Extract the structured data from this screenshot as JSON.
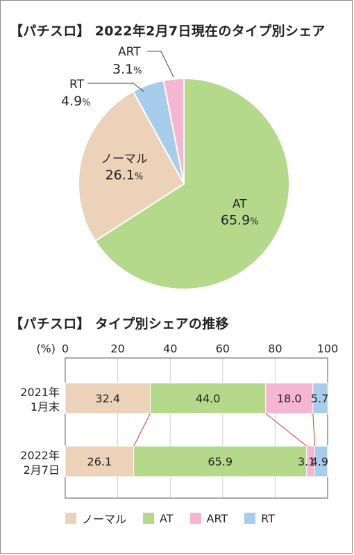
{
  "chart_data": [
    {
      "type": "pie",
      "title": "【パチスロ】 2022年2月7日現在のタイプ別シェア",
      "slices": [
        {
          "name": "AT",
          "value": 65.9,
          "label": "65.9",
          "unit": "%",
          "color": "#b5d98b"
        },
        {
          "name": "ノーマル",
          "value": 26.1,
          "label": "26.1",
          "unit": "%",
          "color": "#ebd2b8"
        },
        {
          "name": "RT",
          "value": 4.9,
          "label": "4.9",
          "unit": "%",
          "color": "#a8cceb"
        },
        {
          "name": "ART",
          "value": 3.1,
          "label": "3.1",
          "unit": "%",
          "color": "#f4b6d1"
        }
      ]
    },
    {
      "type": "bar",
      "orientation": "horizontal-stacked",
      "title": "【パチスロ】 タイプ別シェアの推移",
      "unit_label": "(%)",
      "xlim": [
        0,
        100
      ],
      "ticks": [
        "0",
        "20",
        "40",
        "60",
        "80",
        "100"
      ],
      "grid": true,
      "legend_position": "bottom",
      "categories": [
        {
          "line1": "2021年",
          "line2": "1月末"
        },
        {
          "line1": "2022年",
          "line2": "2月7日"
        }
      ],
      "series": [
        {
          "name": "ノーマル",
          "color": "#ebd2b8",
          "values": [
            32.4,
            26.1
          ],
          "labels": [
            "32.4",
            "26.1"
          ]
        },
        {
          "name": "AT",
          "color": "#b5d98b",
          "values": [
            44.0,
            65.9
          ],
          "labels": [
            "44.0",
            "65.9"
          ]
        },
        {
          "name": "ART",
          "color": "#f4b6d1",
          "values": [
            18.0,
            3.1
          ],
          "labels": [
            "18.0",
            "3.1"
          ]
        },
        {
          "name": "RT",
          "color": "#a8cceb",
          "values": [
            5.7,
            4.9
          ],
          "labels": [
            "5.7",
            "4.9"
          ]
        }
      ],
      "connector_color": "#d9342b"
    }
  ]
}
